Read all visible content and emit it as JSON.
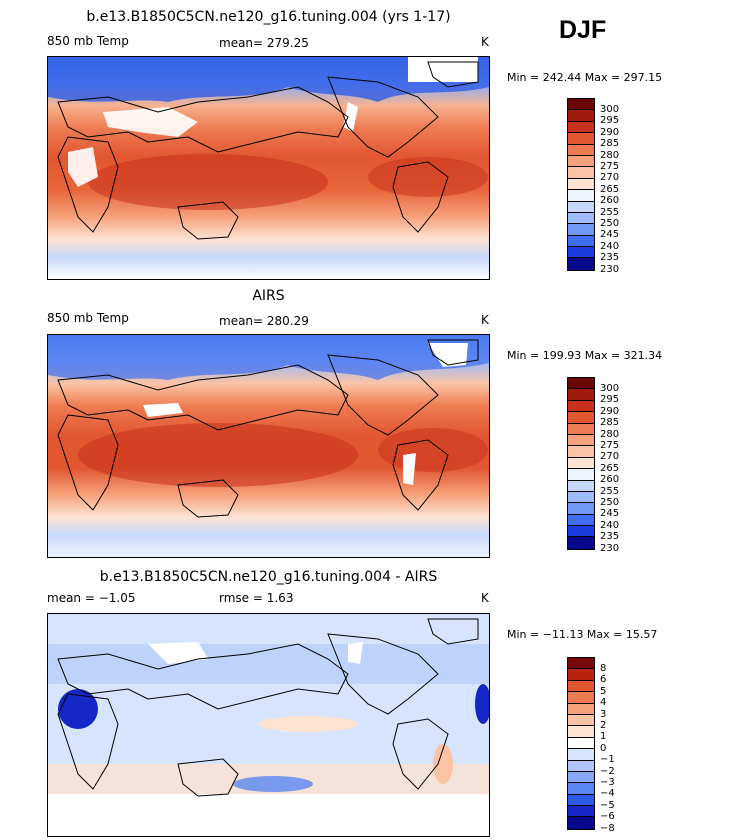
{
  "season": "DJF",
  "colors": {
    "temp_scale": [
      "#08088a",
      "#1b3de0",
      "#3f6ff0",
      "#6f98f5",
      "#9ebcf9",
      "#c7d9fb",
      "#edf3ff",
      "#fde3d2",
      "#fbc4a4",
      "#f6a27b",
      "#ee7c52",
      "#e25730",
      "#c8321a",
      "#a01a0e",
      "#6b0707"
    ],
    "diff_scale": [
      "#08088a",
      "#1428c8",
      "#2b5ce8",
      "#5a86f2",
      "#86a8f6",
      "#aec6fa",
      "#d6e5fd",
      "#ffffff",
      "#fde2d0",
      "#fbc3a4",
      "#f6a27b",
      "#ee7c52",
      "#e25730",
      "#b8240f",
      "#7a0a08"
    ],
    "land_outline": "#000000",
    "missing": "#ffffff"
  },
  "panels": [
    {
      "title": "b.e13.B1850C5CN.ne120_g16.tuning.004 (yrs 1-17)",
      "left_label": "850 mb Temp",
      "center_label": "mean= 279.25",
      "unit": "K",
      "minmax": "Min = 242.44 Max = 297.15",
      "colorbar_labels": [
        "300",
        "295",
        "290",
        "285",
        "280",
        "275",
        "270",
        "265",
        "260",
        "255",
        "250",
        "245",
        "240",
        "235",
        "230"
      ],
      "colorbar_type": "temp"
    },
    {
      "title": "AIRS",
      "left_label": "850 mb Temp",
      "center_label": "mean= 280.29",
      "unit": "K",
      "minmax": "Min = 199.93 Max = 321.34",
      "colorbar_labels": [
        "300",
        "295",
        "290",
        "285",
        "280",
        "275",
        "270",
        "265",
        "260",
        "255",
        "250",
        "245",
        "240",
        "235",
        "230"
      ],
      "colorbar_type": "temp"
    },
    {
      "title": "b.e13.B1850C5CN.ne120_g16.tuning.004 - AIRS",
      "left_label": "mean =  −1.05",
      "center_label": "rmse =    1.63",
      "unit": "K",
      "minmax": "Min = −11.13 Max =  15.57",
      "colorbar_labels": [
        "8",
        "6",
        "5",
        "4",
        "3",
        "2",
        "1",
        "0",
        "−1",
        "−2",
        "−3",
        "−4",
        "−5",
        "−6",
        "−8"
      ],
      "colorbar_type": "diff"
    }
  ]
}
